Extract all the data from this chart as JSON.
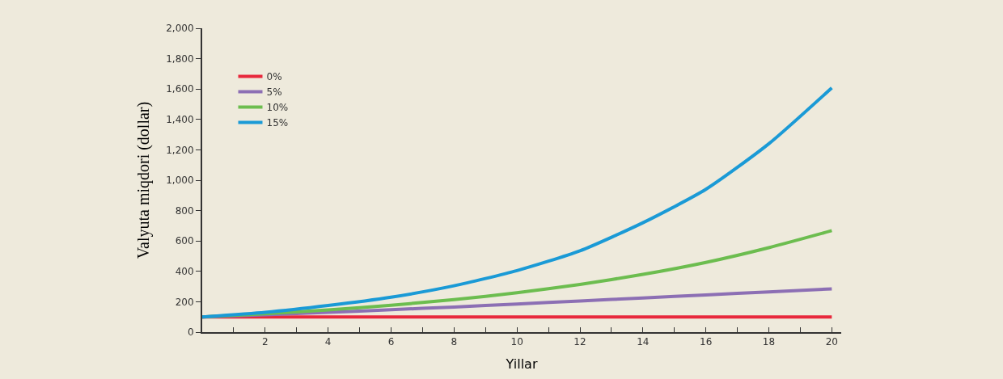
{
  "chart_data": {
    "type": "line",
    "xlabel": "Yillar",
    "ylabel": "Valyuta miqdori (dollar)",
    "x": [
      0,
      2,
      4,
      6,
      8,
      10,
      12,
      14,
      16,
      18,
      20
    ],
    "series": [
      {
        "name": "0%",
        "color": "#e8283c",
        "values": [
          100,
          100,
          100,
          100,
          100,
          100,
          100,
          100,
          100,
          100,
          100
        ]
      },
      {
        "name": "5%",
        "color": "#8c6fb4",
        "values": [
          100,
          115,
          130,
          148,
          165,
          185,
          205,
          225,
          245,
          265,
          285
        ]
      },
      {
        "name": "10%",
        "color": "#6cbd4f",
        "values": [
          100,
          121,
          146,
          177,
          214,
          259,
          314,
          380,
          459,
          556,
          668
        ]
      },
      {
        "name": "15%",
        "color": "#1a9ad6",
        "values": [
          100,
          130,
          175,
          230,
          305,
          405,
          535,
          720,
          940,
          1240,
          1608
        ]
      }
    ],
    "xlim": [
      0,
      20.3
    ],
    "xticks": [
      {
        "value": 1,
        "label": null
      },
      2,
      {
        "value": 3,
        "label": null
      },
      4,
      {
        "value": 5,
        "label": null
      },
      6,
      {
        "value": 7,
        "label": null
      },
      8,
      {
        "value": 9,
        "label": null
      },
      10,
      {
        "value": 11,
        "label": null
      },
      12,
      {
        "value": 13,
        "label": null
      },
      14,
      {
        "value": 15,
        "label": null
      },
      16,
      {
        "value": 17,
        "label": null
      },
      18,
      {
        "value": 19,
        "label": null
      },
      20
    ],
    "ylim": [
      0,
      2000
    ],
    "yticks": [
      0,
      200,
      400,
      600,
      800,
      {
        "value": 1000,
        "label": "1,000"
      },
      {
        "value": 1200,
        "label": "1,200"
      },
      {
        "value": 1400,
        "label": "1,400"
      },
      {
        "value": 1600,
        "label": "1,600"
      },
      {
        "value": 1800,
        "label": "1,800"
      },
      {
        "value": 2000,
        "label": "2,000"
      }
    ],
    "legend": "top left",
    "grid": false,
    "marker": "none",
    "line_style": "solid"
  }
}
